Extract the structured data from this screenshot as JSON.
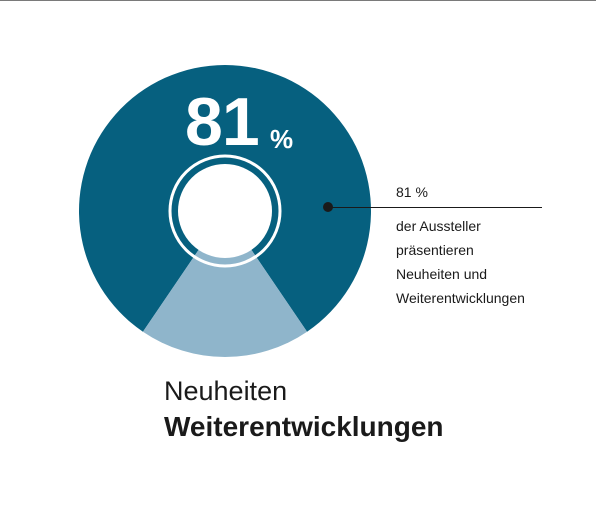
{
  "colors": {
    "main": "#06607f",
    "rest": "#8fb5cb",
    "ring": "#ffffff",
    "text": "#1a1a1a"
  },
  "chart_data": {
    "type": "pie",
    "variant": "donut",
    "slices": [
      {
        "value": 81
      },
      {
        "value": 19
      }
    ],
    "center_label": {
      "value": "81",
      "unit": "%"
    },
    "callout": {
      "value": "81 %",
      "text": "der Aussteller\npräsentieren\nNeuheiten und\nWeiterentwicklungen"
    }
  },
  "caption": {
    "line1": "Neuheiten",
    "line2": "Weiterentwicklungen"
  }
}
